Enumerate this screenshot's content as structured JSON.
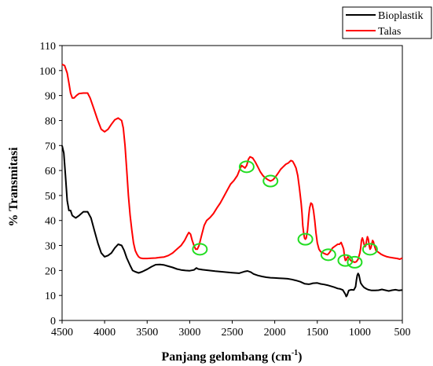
{
  "chart_data": {
    "type": "line",
    "xlabel": "Panjang gelombang (cm",
    "xlabel_sup": "-1",
    "xlabel_tail": ")",
    "ylabel": "% Transmitasi",
    "xlim": [
      4500,
      500
    ],
    "ylim": [
      0,
      110
    ],
    "x_ticks": [
      4500,
      4000,
      3500,
      3000,
      2500,
      2000,
      1500,
      1000,
      500
    ],
    "y_ticks": [
      0,
      10,
      20,
      30,
      40,
      50,
      60,
      70,
      80,
      90,
      100,
      110
    ],
    "grid": false,
    "legend_position": "top-right",
    "series": [
      {
        "name": "Bioplastik",
        "color": "#000000",
        "points": [
          [
            4500,
            70
          ],
          [
            4480,
            67
          ],
          [
            4460,
            58
          ],
          [
            4440,
            48
          ],
          [
            4420,
            44
          ],
          [
            4400,
            44
          ],
          [
            4380,
            42
          ],
          [
            4340,
            41
          ],
          [
            4300,
            42
          ],
          [
            4250,
            43.5
          ],
          [
            4200,
            43.5
          ],
          [
            4160,
            41
          ],
          [
            4120,
            36
          ],
          [
            4080,
            31
          ],
          [
            4040,
            27
          ],
          [
            4000,
            25.5
          ],
          [
            3960,
            26
          ],
          [
            3920,
            27
          ],
          [
            3880,
            29
          ],
          [
            3840,
            30.5
          ],
          [
            3800,
            30
          ],
          [
            3770,
            28
          ],
          [
            3740,
            25
          ],
          [
            3700,
            22
          ],
          [
            3670,
            20
          ],
          [
            3640,
            19.5
          ],
          [
            3600,
            19
          ],
          [
            3560,
            19.5
          ],
          [
            3500,
            20.5
          ],
          [
            3450,
            21.5
          ],
          [
            3400,
            22.3
          ],
          [
            3350,
            22.4
          ],
          [
            3300,
            22.2
          ],
          [
            3250,
            21.7
          ],
          [
            3200,
            21.2
          ],
          [
            3150,
            20.6
          ],
          [
            3100,
            20.2
          ],
          [
            3050,
            20
          ],
          [
            3000,
            19.9
          ],
          [
            2950,
            20.2
          ],
          [
            2920,
            21
          ],
          [
            2900,
            20.6
          ],
          [
            2850,
            20.3
          ],
          [
            2800,
            20.1
          ],
          [
            2700,
            19.7
          ],
          [
            2600,
            19.4
          ],
          [
            2500,
            19.1
          ],
          [
            2420,
            18.9
          ],
          [
            2380,
            19.3
          ],
          [
            2350,
            19.6
          ],
          [
            2320,
            19.8
          ],
          [
            2280,
            19.3
          ],
          [
            2250,
            18.6
          ],
          [
            2200,
            18
          ],
          [
            2150,
            17.6
          ],
          [
            2100,
            17.3
          ],
          [
            2050,
            17.1
          ],
          [
            2000,
            17
          ],
          [
            1950,
            16.9
          ],
          [
            1900,
            16.8
          ],
          [
            1850,
            16.7
          ],
          [
            1800,
            16.4
          ],
          [
            1750,
            16
          ],
          [
            1700,
            15.5
          ],
          [
            1650,
            14.7
          ],
          [
            1600,
            14.5
          ],
          [
            1580,
            14.6
          ],
          [
            1550,
            14.9
          ],
          [
            1500,
            15
          ],
          [
            1460,
            14.6
          ],
          [
            1420,
            14.4
          ],
          [
            1380,
            14.1
          ],
          [
            1350,
            13.8
          ],
          [
            1300,
            13.3
          ],
          [
            1260,
            12.8
          ],
          [
            1230,
            12.6
          ],
          [
            1200,
            12.2
          ],
          [
            1170,
            10.5
          ],
          [
            1160,
            9.6
          ],
          [
            1150,
            10
          ],
          [
            1130,
            12
          ],
          [
            1100,
            12.3
          ],
          [
            1070,
            12.2
          ],
          [
            1050,
            13.5
          ],
          [
            1040,
            16
          ],
          [
            1030,
            18
          ],
          [
            1020,
            18.8
          ],
          [
            1010,
            18.2
          ],
          [
            1000,
            16.5
          ],
          [
            990,
            15
          ],
          [
            970,
            14
          ],
          [
            950,
            13.2
          ],
          [
            920,
            12.6
          ],
          [
            900,
            12.3
          ],
          [
            860,
            12
          ],
          [
            820,
            12
          ],
          [
            780,
            12.1
          ],
          [
            740,
            12.4
          ],
          [
            700,
            12.1
          ],
          [
            660,
            11.8
          ],
          [
            620,
            12.1
          ],
          [
            580,
            12.3
          ],
          [
            540,
            12
          ],
          [
            500,
            12.2
          ]
        ]
      },
      {
        "name": "Talas",
        "color": "#ff0000",
        "points": [
          [
            4500,
            102.5
          ],
          [
            4470,
            102
          ],
          [
            4440,
            99
          ],
          [
            4420,
            95
          ],
          [
            4400,
            91
          ],
          [
            4380,
            89
          ],
          [
            4360,
            89
          ],
          [
            4330,
            90
          ],
          [
            4300,
            90.8
          ],
          [
            4250,
            91
          ],
          [
            4200,
            91
          ],
          [
            4170,
            89
          ],
          [
            4130,
            85
          ],
          [
            4080,
            80
          ],
          [
            4040,
            76.5
          ],
          [
            4000,
            75.5
          ],
          [
            3960,
            76.5
          ],
          [
            3920,
            78.5
          ],
          [
            3880,
            80.3
          ],
          [
            3840,
            81
          ],
          [
            3800,
            80
          ],
          [
            3780,
            77
          ],
          [
            3760,
            70
          ],
          [
            3740,
            60
          ],
          [
            3720,
            50
          ],
          [
            3700,
            42
          ],
          [
            3680,
            36
          ],
          [
            3660,
            31
          ],
          [
            3640,
            28
          ],
          [
            3620,
            26.5
          ],
          [
            3600,
            25.5
          ],
          [
            3580,
            25
          ],
          [
            3550,
            24.8
          ],
          [
            3500,
            24.8
          ],
          [
            3450,
            24.9
          ],
          [
            3400,
            25
          ],
          [
            3350,
            25.2
          ],
          [
            3300,
            25.4
          ],
          [
            3250,
            26
          ],
          [
            3200,
            27
          ],
          [
            3150,
            28.5
          ],
          [
            3100,
            30
          ],
          [
            3060,
            32
          ],
          [
            3030,
            34
          ],
          [
            3010,
            35.2
          ],
          [
            2990,
            34.5
          ],
          [
            2970,
            32
          ],
          [
            2950,
            30
          ],
          [
            2930,
            28.5
          ],
          [
            2910,
            28.5
          ],
          [
            2890,
            30
          ],
          [
            2860,
            34
          ],
          [
            2830,
            38
          ],
          [
            2800,
            40
          ],
          [
            2760,
            41.2
          ],
          [
            2720,
            42.8
          ],
          [
            2680,
            45
          ],
          [
            2640,
            47
          ],
          [
            2600,
            49.5
          ],
          [
            2560,
            52
          ],
          [
            2520,
            54.5
          ],
          [
            2480,
            56
          ],
          [
            2440,
            58
          ],
          [
            2410,
            60.5
          ],
          [
            2390,
            62
          ],
          [
            2370,
            61.5
          ],
          [
            2350,
            61
          ],
          [
            2330,
            62
          ],
          [
            2310,
            64.5
          ],
          [
            2290,
            65.5
          ],
          [
            2260,
            65
          ],
          [
            2230,
            63.5
          ],
          [
            2200,
            61.5
          ],
          [
            2170,
            59.5
          ],
          [
            2140,
            58
          ],
          [
            2110,
            57
          ],
          [
            2080,
            56.3
          ],
          [
            2050,
            55.8
          ],
          [
            2020,
            56.3
          ],
          [
            1990,
            57.5
          ],
          [
            1960,
            59
          ],
          [
            1930,
            60.5
          ],
          [
            1900,
            61.5
          ],
          [
            1870,
            62.5
          ],
          [
            1840,
            63
          ],
          [
            1810,
            64
          ],
          [
            1790,
            63.7
          ],
          [
            1770,
            62.5
          ],
          [
            1750,
            61
          ],
          [
            1730,
            58
          ],
          [
            1710,
            53
          ],
          [
            1690,
            47
          ],
          [
            1680,
            43
          ],
          [
            1670,
            38
          ],
          [
            1660,
            35
          ],
          [
            1650,
            33
          ],
          [
            1640,
            32.5
          ],
          [
            1630,
            33
          ],
          [
            1615,
            36
          ],
          [
            1600,
            42
          ],
          [
            1590,
            45
          ],
          [
            1575,
            47
          ],
          [
            1560,
            46.5
          ],
          [
            1545,
            44
          ],
          [
            1530,
            40
          ],
          [
            1515,
            35
          ],
          [
            1500,
            31
          ],
          [
            1480,
            28.5
          ],
          [
            1460,
            27.5
          ],
          [
            1430,
            27
          ],
          [
            1400,
            26.5
          ],
          [
            1380,
            26.3
          ],
          [
            1360,
            27
          ],
          [
            1340,
            28
          ],
          [
            1320,
            29
          ],
          [
            1300,
            29.5
          ],
          [
            1280,
            30
          ],
          [
            1260,
            30.5
          ],
          [
            1240,
            30.5
          ],
          [
            1220,
            31.2
          ],
          [
            1200,
            29.5
          ],
          [
            1190,
            28.5
          ],
          [
            1180,
            25.5
          ],
          [
            1170,
            24
          ],
          [
            1160,
            24.2
          ],
          [
            1150,
            25
          ],
          [
            1140,
            25.5
          ],
          [
            1120,
            24.5
          ],
          [
            1100,
            23.8
          ],
          [
            1080,
            23.5
          ],
          [
            1060,
            23.3
          ],
          [
            1040,
            23.5
          ],
          [
            1020,
            24.5
          ],
          [
            1000,
            27
          ],
          [
            990,
            29
          ],
          [
            980,
            32
          ],
          [
            970,
            33
          ],
          [
            960,
            32
          ],
          [
            950,
            30.5
          ],
          [
            940,
            29.5
          ],
          [
            930,
            30
          ],
          [
            920,
            32
          ],
          [
            910,
            33.5
          ],
          [
            900,
            32.5
          ],
          [
            890,
            30
          ],
          [
            880,
            28.5
          ],
          [
            870,
            29
          ],
          [
            860,
            30.5
          ],
          [
            850,
            32
          ],
          [
            840,
            31.5
          ],
          [
            830,
            30
          ],
          [
            810,
            28
          ],
          [
            790,
            27.5
          ],
          [
            770,
            27
          ],
          [
            750,
            26.5
          ],
          [
            720,
            26
          ],
          [
            680,
            25.5
          ],
          [
            640,
            25.2
          ],
          [
            600,
            25
          ],
          [
            560,
            24.8
          ],
          [
            530,
            24.5
          ],
          [
            500,
            25
          ]
        ]
      }
    ],
    "markers": [
      {
        "x": 2880,
        "y": 28.5,
        "color": "#22dd22"
      },
      {
        "x": 2330,
        "y": 61.5,
        "color": "#22dd22"
      },
      {
        "x": 2050,
        "y": 55.8,
        "color": "#22dd22"
      },
      {
        "x": 1640,
        "y": 32.5,
        "color": "#22dd22"
      },
      {
        "x": 1370,
        "y": 26.3,
        "color": "#22dd22"
      },
      {
        "x": 1170,
        "y": 24,
        "color": "#22dd22"
      },
      {
        "x": 1060,
        "y": 23.3,
        "color": "#22dd22"
      },
      {
        "x": 880,
        "y": 28.5,
        "color": "#22dd22"
      }
    ]
  }
}
